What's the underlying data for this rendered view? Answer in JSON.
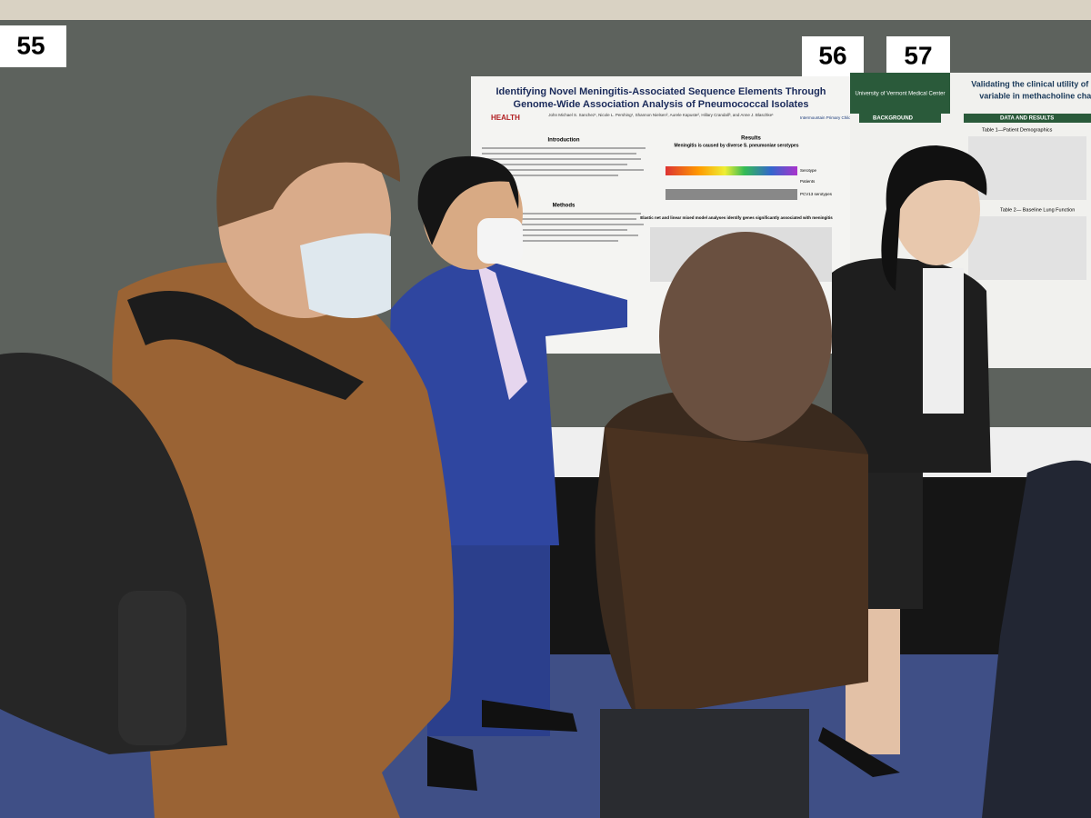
{
  "boards": [
    {
      "number": "55"
    },
    {
      "number": "56"
    },
    {
      "number": "57"
    }
  ],
  "posters": [
    {
      "title_lines": [
        "Identifying Novel Meningitis-Associated Sequence Elements Through",
        "Genome-Wide Association Analysis of Pneumococcal Isolates"
      ],
      "authors": "John Michael S. Sanchez¹, Nicole L. Pershing¹, Shannon Nielsen², Aurele Kapuste², Hillary Crandall³, and Anne J. Blaschke¹",
      "logo_left": "HEALTH",
      "logo_right": "Intermountain Primary Children's Medical Center",
      "sections": [
        "Introduction",
        "Methods",
        "Results"
      ],
      "figure_title": "Meningitis is caused by diverse S. pneumoniae serotypes",
      "figure_labels": [
        "Serotype",
        "Patients",
        "PCV13 serotypes"
      ],
      "subtitle": "Elastic net and linear mixed model analyses identify genes significantly associated with meningitis"
    },
    {
      "title_lines": [
        "Validating the clinical utility of sG",
        "variable in methacholine chal"
      ],
      "institution": "University of Vermont Medical Center",
      "sections": [
        "BACKGROUND",
        "DATA AND RESULTS"
      ],
      "tables": [
        "Table 1—Patient Demographics",
        "Table 2— Baseline Lung Function"
      ]
    }
  ]
}
